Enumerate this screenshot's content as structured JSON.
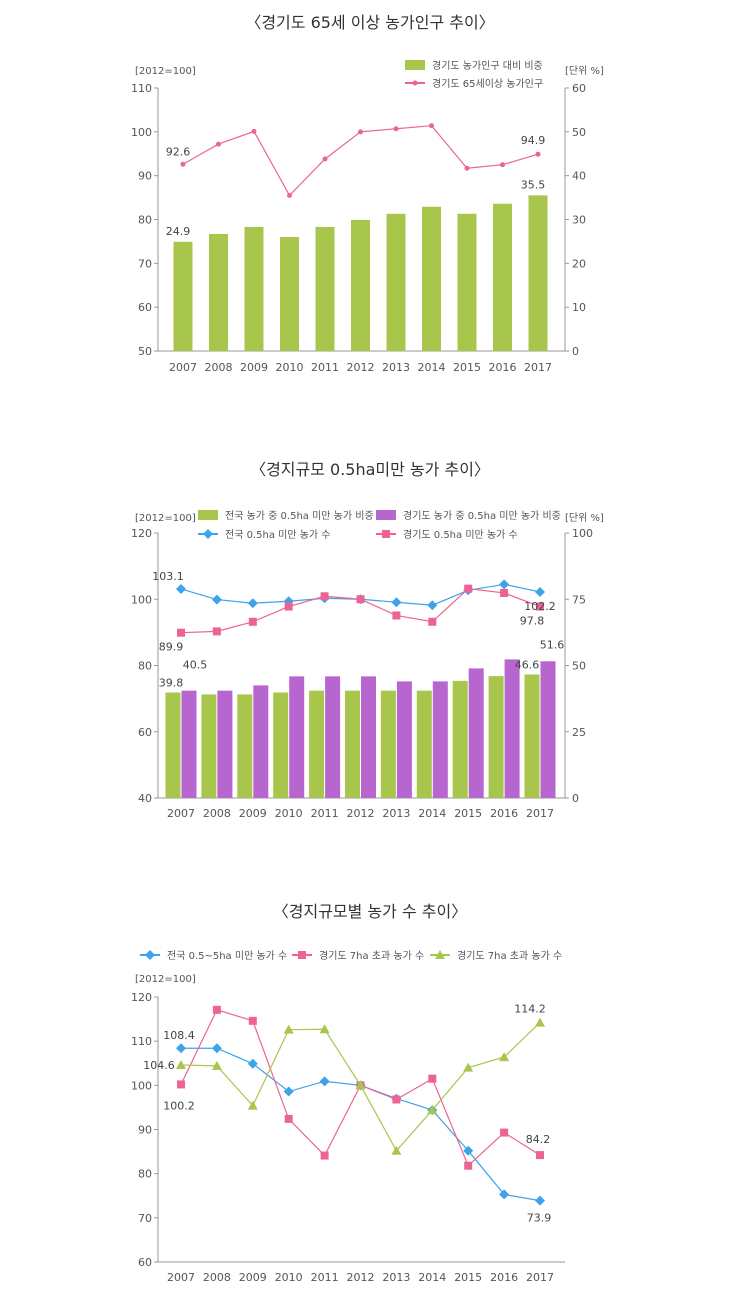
{
  "chart_data": [
    {
      "type": "bar+line",
      "title": "〈경기도 65세 이상 농가인구 추이〉",
      "ylabel_left": "[2012=100]",
      "ylabel_right": "[단위 %]",
      "categories": [
        "2007",
        "2008",
        "2009",
        "2010",
        "2011",
        "2012",
        "2013",
        "2014",
        "2015",
        "2016",
        "2017"
      ],
      "ylim_left": [
        50,
        110
      ],
      "yticks_left": [
        "50",
        "60",
        "70",
        "80",
        "90",
        "100",
        "110"
      ],
      "ylim_right": [
        0,
        60
      ],
      "yticks_right": [
        "0",
        "10",
        "20",
        "30",
        "40",
        "50",
        "60"
      ],
      "legend_placement": "top-right",
      "grid": false,
      "series": [
        {
          "name": "경기도 농가인구 대비 비중",
          "kind": "bar",
          "axis": "right",
          "color": "#a8c64c",
          "values": [
            24.9,
            26.7,
            28.3,
            26.0,
            28.3,
            29.9,
            31.3,
            32.9,
            31.3,
            33.6,
            35.5
          ]
        },
        {
          "name": "경기도 65세이상 농가인구",
          "kind": "line",
          "marker": "circle",
          "axis": "left",
          "color": "#ec6496",
          "values": [
            92.6,
            97.2,
            100.1,
            85.5,
            93.8,
            100,
            100.7,
            101.4,
            91.7,
            92.5,
            94.9
          ]
        }
      ],
      "annotations": [
        {
          "series": 1,
          "index": 0,
          "text": "92.6"
        },
        {
          "series": 1,
          "index": 10,
          "text": "94.9"
        },
        {
          "series": 0,
          "index": 0,
          "text": "24.9"
        },
        {
          "series": 0,
          "index": 10,
          "text": "35.5"
        }
      ]
    },
    {
      "type": "bar+line",
      "title": "〈경지규모 0.5ha미만 농가 추이〉",
      "ylabel_left": "[2012=100]",
      "ylabel_right": "[단위 %]",
      "categories": [
        "2007",
        "2008",
        "2009",
        "2010",
        "2011",
        "2012",
        "2013",
        "2014",
        "2015",
        "2016",
        "2017"
      ],
      "ylim_left": [
        40,
        120
      ],
      "yticks_left": [
        "40",
        "60",
        "80",
        "100",
        "120"
      ],
      "ylim_right": [
        0,
        100
      ],
      "yticks_right": [
        "0",
        "25",
        "50",
        "75",
        "100"
      ],
      "legend_placement": "top",
      "grid": false,
      "series": [
        {
          "name": "전국 농가 중 0.5ha 미만 농가 비중",
          "kind": "bar",
          "axis": "right",
          "color": "#a8c64c",
          "values": [
            39.8,
            39.1,
            39.1,
            39.8,
            40.5,
            40.5,
            40.5,
            40.5,
            44.2,
            46.0,
            46.6
          ]
        },
        {
          "name": "경기도 농가 중 0.5ha 미만 농가 비중",
          "kind": "bar",
          "axis": "right",
          "color": "#b866cf",
          "values": [
            40.5,
            40.5,
            42.5,
            45.9,
            45.9,
            45.9,
            44.0,
            44.0,
            48.9,
            52.3,
            51.6
          ]
        },
        {
          "name": "전국 0.5ha 미만 농가 수",
          "kind": "line",
          "marker": "diamond",
          "axis": "left",
          "color": "#3ea3ea",
          "values": [
            103.1,
            99.9,
            98.8,
            99.4,
            100.3,
            100,
            99.1,
            98.2,
            102.7,
            104.5,
            102.2
          ]
        },
        {
          "name": "경기도 0.5ha 미만 농가 수",
          "kind": "line",
          "marker": "square",
          "axis": "left",
          "color": "#ec6496",
          "values": [
            89.9,
            90.3,
            93.2,
            97.8,
            100.9,
            100,
            95.1,
            93.2,
            103.2,
            101.9,
            97.8
          ]
        }
      ],
      "annotations": [
        {
          "series": 2,
          "index": 0,
          "text": "103.1"
        },
        {
          "series": 2,
          "index": 10,
          "text": "102.2"
        },
        {
          "series": 3,
          "index": 0,
          "text": "89.9"
        },
        {
          "series": 3,
          "index": 10,
          "text": "97.8"
        },
        {
          "series": 0,
          "index": 0,
          "text": "39.8"
        },
        {
          "series": 1,
          "index": 0,
          "text": "40.5"
        },
        {
          "series": 0,
          "index": 10,
          "text": "46.6"
        },
        {
          "series": 1,
          "index": 10,
          "text": "51.6"
        }
      ]
    },
    {
      "type": "line",
      "title": "〈경지규모별 농가 수 추이〉",
      "ylabel_left": "[2012=100]",
      "categories": [
        "2007",
        "2008",
        "2009",
        "2010",
        "2011",
        "2012",
        "2013",
        "2014",
        "2015",
        "2016",
        "2017"
      ],
      "ylim_left": [
        60,
        120
      ],
      "yticks_left": [
        "60",
        "70",
        "80",
        "90",
        "100",
        "110",
        "120"
      ],
      "legend_placement": "top",
      "grid": false,
      "series": [
        {
          "name": "전국 0.5~5ha 미만 농가 수",
          "kind": "line",
          "marker": "diamond",
          "axis": "left",
          "color": "#3ea3ea",
          "values": [
            108.4,
            108.4,
            104.9,
            98.6,
            100.9,
            100,
            97.0,
            94.4,
            85.2,
            75.3,
            73.9
          ]
        },
        {
          "name": "경기도 7ha 초과 농가 수",
          "kind": "line",
          "marker": "square",
          "axis": "left",
          "color": "#ec6496",
          "values": [
            100.2,
            117.1,
            114.6,
            92.4,
            84.1,
            100,
            96.8,
            101.5,
            81.8,
            89.3,
            84.2
          ]
        },
        {
          "name": "경기도 7ha 초과 농가 수",
          "kind": "line",
          "marker": "triangle",
          "axis": "left",
          "color": "#a8c64c",
          "values": [
            104.6,
            104.4,
            95.4,
            112.6,
            112.7,
            100,
            85.2,
            94.4,
            104.0,
            106.4,
            114.2
          ]
        }
      ],
      "annotations": [
        {
          "series": 0,
          "index": 0,
          "text": "108.4"
        },
        {
          "series": 2,
          "index": 0,
          "text": "104.6"
        },
        {
          "series": 1,
          "index": 0,
          "text": "100.2"
        },
        {
          "series": 2,
          "index": 10,
          "text": "114.2"
        },
        {
          "series": 1,
          "index": 10,
          "text": "84.2"
        },
        {
          "series": 0,
          "index": 10,
          "text": "73.9"
        }
      ]
    }
  ]
}
